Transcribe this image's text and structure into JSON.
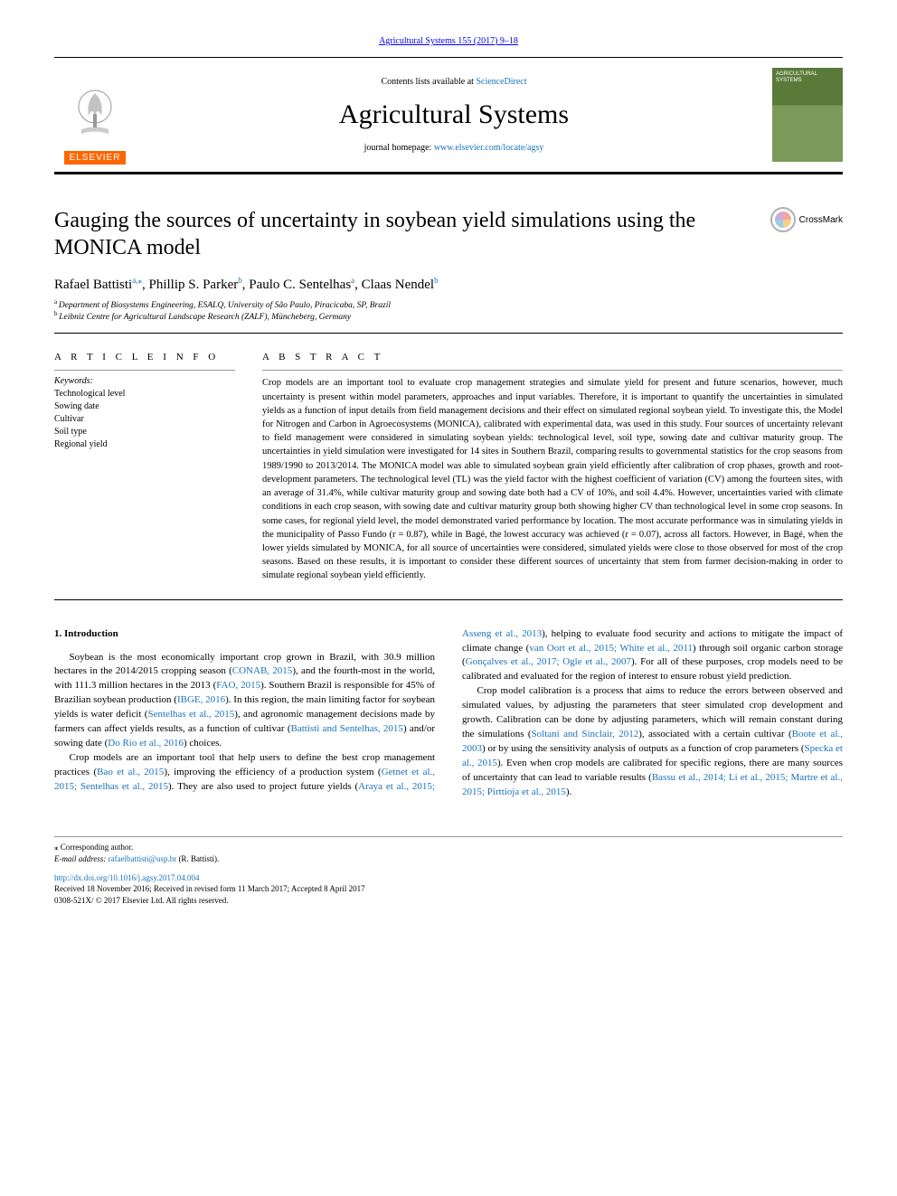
{
  "journal_citation_link": "Agricultural Systems 155 (2017) 9–18",
  "header": {
    "contents_prefix": "Contents lists available at ",
    "contents_link": "ScienceDirect",
    "journal_name": "Agricultural Systems",
    "homepage_prefix": "journal homepage: ",
    "homepage_link": "www.elsevier.com/locate/agsy",
    "elsevier_label": "ELSEVIER",
    "cover_title": "AGRICULTURAL SYSTEMS"
  },
  "crossmark_label": "CrossMark",
  "title": "Gauging the sources of uncertainty in soybean yield simulations using the MONICA model",
  "authors": [
    {
      "name": "Rafael Battisti",
      "sup": "a,",
      "star": "⁎"
    },
    {
      "name": "Phillip S. Parker",
      "sup": "b"
    },
    {
      "name": "Paulo C. Sentelhas",
      "sup": "a"
    },
    {
      "name": "Claas Nendel",
      "sup": "b"
    }
  ],
  "affiliations": [
    {
      "sup": "a",
      "text": "Department of Biosystems Engineering, ESALQ, University of São Paulo, Piracicaba, SP, Brazil"
    },
    {
      "sup": "b",
      "text": "Leibniz Centre for Agricultural Landscape Research (ZALF), Müncheberg, Germany"
    }
  ],
  "article_info_header": "A R T I C L E  I N F O",
  "abstract_header": "A B S T R A C T",
  "keywords_label": "Keywords:",
  "keywords": [
    "Technological level",
    "Sowing date",
    "Cultivar",
    "Soil type",
    "Regional yield"
  ],
  "abstract": "Crop models are an important tool to evaluate crop management strategies and simulate yield for present and future scenarios, however, much uncertainty is present within model parameters, approaches and input variables. Therefore, it is important to quantify the uncertainties in simulated yields as a function of input details from field management decisions and their effect on simulated regional soybean yield. To investigate this, the Model for Nitrogen and Carbon in Agroecosystems (MONICA), calibrated with experimental data, was used in this study. Four sources of uncertainty relevant to field management were considered in simulating soybean yields: technological level, soil type, sowing date and cultivar maturity group. The uncertainties in yield simulation were investigated for 14 sites in Southern Brazil, comparing results to governmental statistics for the crop seasons from 1989/1990 to 2013/2014. The MONICA model was able to simulated soybean grain yield efficiently after calibration of crop phases, growth and root-development parameters. The technological level (TL) was the yield factor with the highest coefficient of variation (CV) among the fourteen sites, with an average of 31.4%, while cultivar maturity group and sowing date both had a CV of 10%, and soil 4.4%. However, uncertainties varied with climate conditions in each crop season, with sowing date and cultivar maturity group both showing higher CV than technological level in some crop seasons. In some cases, for regional yield level, the model demonstrated varied performance by location. The most accurate performance was in simulating yields in the municipality of Passo Fundo (r = 0.87), while in Bagé, the lowest accuracy was achieved (r = 0.07), across all factors. However, in Bagé, when the lower yields simulated by MONICA, for all source of uncertainties were considered, simulated yields were close to those observed for most of the crop seasons. Based on these results, it is important to consider these different sources of uncertainty that stem from farmer decision-making in order to simulate regional soybean yield efficiently.",
  "body": {
    "section_number": "1.",
    "section_title": "Introduction",
    "p1_a": "Soybean is the most economically important crop grown in Brazil, with 30.9 million hectares in the 2014/2015 cropping season (",
    "p1_conab": "CONAB, 2015",
    "p1_b": "), and the fourth-most in the world, with 111.3 million hectares in the 2013 (",
    "p1_fao": "FAO, 2015",
    "p1_c": "). Southern Brazil is responsible for 45% of Brazilian soybean production (",
    "p1_ibge": "IBGE, 2016",
    "p1_d": "). In this region, the main limiting factor for soybean yields is water deficit (",
    "p1_sent": "Sentelhas et al., 2015",
    "p1_e": "), and agronomic management decisions made by farmers can affect yields results, as a function of cultivar (",
    "p1_bs": "Battisti and Sentelhas, 2015",
    "p1_f": ") and/or sowing date (",
    "p1_dorio": "Do Rio et al., 2016",
    "p1_g": ") choices.",
    "p2_a": "Crop models are an important tool that help users to define the best crop management practices (",
    "p2_bao": "Bao et al., 2015",
    "p2_b": "), improving the efficiency of a production system (",
    "p2_getnet": "Getnet et al., 2015; Sentelhas et al., 2015",
    "p2_c": "). They are also used to project future yields (",
    "p2_araya": "Araya et al., 2015; Asseng",
    "p2_d": " ",
    "p2_et": "et al., 2013",
    "p2_e": "), helping to evaluate food security and actions to mitigate the impact of climate change (",
    "p2_oort": "van Oort et al., 2015; White et al., 2011",
    "p2_f": ") through soil organic carbon storage (",
    "p2_gonc": "Gonçalves et al., 2017; Ogle et al., 2007",
    "p2_g": "). For all of these purposes, crop models need to be calibrated and evaluated for the region of interest to ensure robust yield prediction.",
    "p3_a": "Crop model calibration is a process that aims to reduce the errors between observed and simulated values, by adjusting the parameters that steer simulated crop development and growth. Calibration can be done by adjusting parameters, which will remain constant during the simulations (",
    "p3_solt": "Soltani and Sinclair, 2012",
    "p3_b": "), associated with a certain cultivar (",
    "p3_boote": "Boote et al., 2003",
    "p3_c": ") or by using the sensitivity analysis of outputs as a function of crop parameters (",
    "p3_specka": "Specka et al., 2015",
    "p3_d": "). Even when crop models are calibrated for specific regions, there are many sources of uncertainty that can lead to variable results (",
    "p3_bassu": "Bassu et al., 2014; Li et al., 2015; Martre et al., 2015; Pirttioja et al., 2015",
    "p3_e": ")."
  },
  "footer": {
    "corr_marker": "⁎",
    "corr_text": "Corresponding author.",
    "email_label": "E-mail address: ",
    "email_link": "rafaelbattisti@usp.br",
    "email_suffix": " (R. Battisti).",
    "doi": "http://dx.doi.org/10.1016/j.agsy.2017.04.004",
    "received": "Received 18 November 2016; Received in revised form 11 March 2017; Accepted 8 April 2017",
    "copyright": "0308-521X/ © 2017 Elsevier Ltd. All rights reserved."
  },
  "colors": {
    "link": "#1a72b8",
    "elsevier_orange": "#ff6600",
    "cover_green_dark": "#5a7a3a",
    "cover_green_light": "#7a9a5a"
  }
}
